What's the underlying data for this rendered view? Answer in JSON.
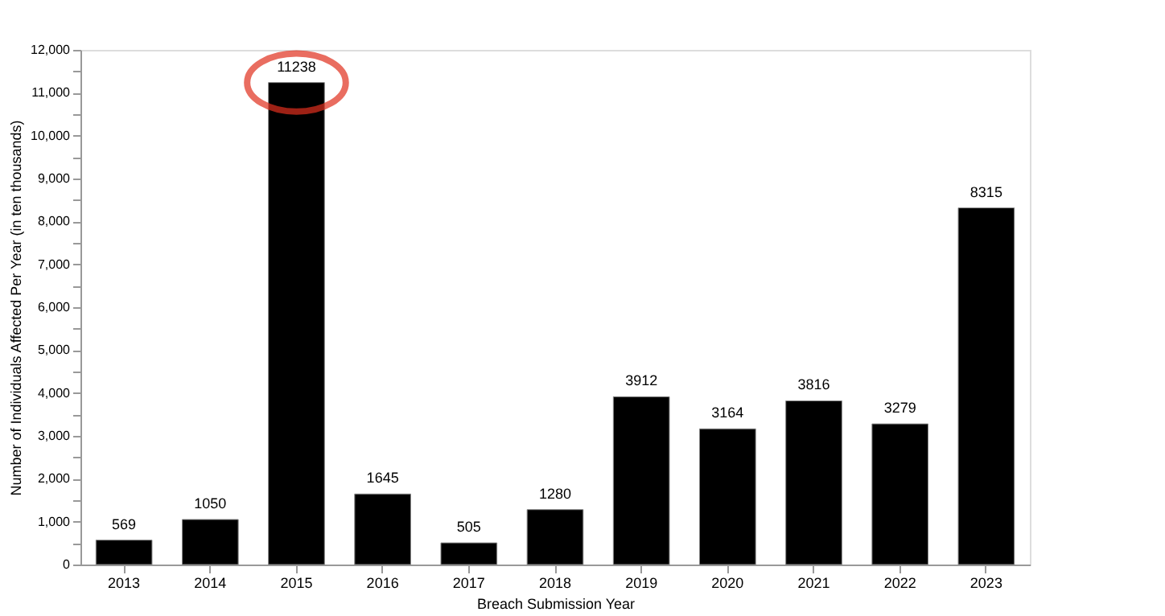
{
  "chart_data": {
    "type": "bar",
    "xlabel": "Breach Submission Year",
    "ylabel": "Number of Individuals Affected Per Year (in ten thousands)",
    "categories": [
      "2013",
      "2014",
      "2015",
      "2016",
      "2017",
      "2018",
      "2019",
      "2020",
      "2021",
      "2022",
      "2023"
    ],
    "values": [
      569,
      1050,
      11238,
      1645,
      505,
      1280,
      3912,
      3164,
      3816,
      3279,
      8315
    ],
    "color": "#000000",
    "data_labels": true,
    "ylim": [
      0,
      12000
    ],
    "yticks": [
      0,
      {
        "value": 500,
        "label": null
      },
      {
        "value": 1000,
        "label": "1,000"
      },
      {
        "value": 1500,
        "label": null
      },
      {
        "value": 2000,
        "label": "2,000"
      },
      {
        "value": 2500,
        "label": null
      },
      {
        "value": 3000,
        "label": "3,000"
      },
      {
        "value": 3500,
        "label": null
      },
      {
        "value": 4000,
        "label": "4,000"
      },
      {
        "value": 4500,
        "label": null
      },
      {
        "value": 5000,
        "label": "5,000"
      },
      {
        "value": 5500,
        "label": null
      },
      {
        "value": 6000,
        "label": "6,000"
      },
      {
        "value": 6500,
        "label": null
      },
      {
        "value": 7000,
        "label": "7,000"
      },
      {
        "value": 7500,
        "label": null
      },
      {
        "value": 8000,
        "label": "8,000"
      },
      {
        "value": 8500,
        "label": null
      },
      {
        "value": 9000,
        "label": "9,000"
      },
      {
        "value": 9500,
        "label": null
      },
      {
        "value": 10000,
        "label": "10,000"
      },
      {
        "value": 10500,
        "label": null
      },
      {
        "value": 11000,
        "label": "11,000"
      },
      {
        "value": 11500,
        "label": null
      },
      {
        "value": 12000,
        "label": "12,000"
      }
    ],
    "grid": false
  }
}
